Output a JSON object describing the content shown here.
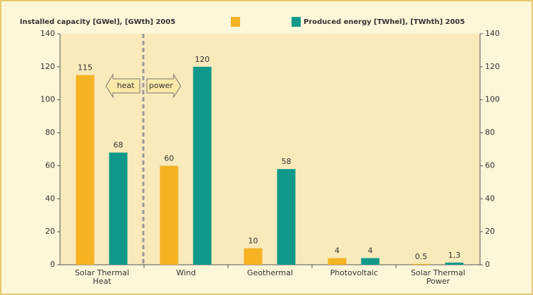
{
  "chart_data": {
    "type": "bar",
    "categories": [
      "Solar Thermal\nHeat",
      "Wind",
      "Geothermal",
      "Photovoltaic",
      "Solar Thermal\nPower"
    ],
    "series": [
      {
        "name": "Installed capacity [GWel], [GWth] 2005",
        "color": "#f5b223",
        "values": [
          115,
          60,
          10,
          4,
          0.5
        ]
      },
      {
        "name": "Produced energy [TWhel], [TWhth] 2005",
        "color": "#10998a",
        "values": [
          68,
          120,
          58,
          4,
          1.3
        ],
        "value_labels": [
          "68",
          "120",
          "58",
          "4",
          "1,3"
        ]
      }
    ],
    "ylim": [
      0,
      140
    ],
    "yticks": [
      0,
      20,
      40,
      60,
      80,
      100,
      120,
      140
    ],
    "y2lim": [
      0,
      140
    ],
    "y2ticks": [
      0,
      20,
      40,
      60,
      80,
      100,
      120,
      140
    ],
    "annotations": [
      "heat",
      "power"
    ]
  }
}
